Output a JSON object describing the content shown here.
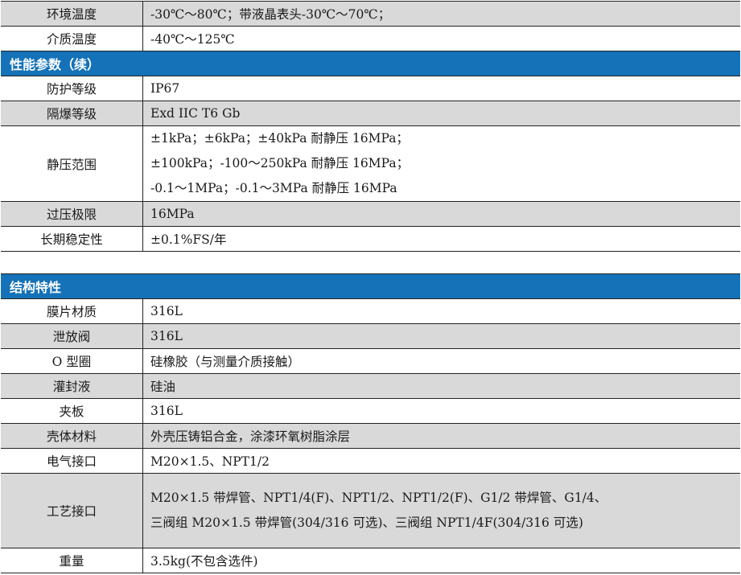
{
  "colors": {
    "header": "#1572b8",
    "shade": "#d9d9d9"
  },
  "table1": {
    "rows_before": [
      {
        "label": "环境温度",
        "value": [
          "-30℃～80℃；带液晶表头-30℃～70℃；"
        ],
        "shaded": true
      },
      {
        "label": "介质温度",
        "value": [
          "-40℃～125℃"
        ],
        "shaded": false
      }
    ],
    "section": "性能参数（续）",
    "rows": [
      {
        "label": "防护等级",
        "value": [
          "IP67"
        ],
        "shaded": false
      },
      {
        "label": "隔爆等级",
        "value": [
          "Exd IIC T6 Gb"
        ],
        "shaded": true
      },
      {
        "label": "静压范围",
        "value": [
          "±1kPa；±6kPa；±40kPa 耐静压 16MPa；",
          "±100kPa；-100～250kPa 耐静压 16MPa；",
          "-0.1～1MPa；-0.1～3MPa 耐静压 16MPa"
        ],
        "shaded": false
      },
      {
        "label": "过压极限",
        "value": [
          "16MPa"
        ],
        "shaded": true
      },
      {
        "label": "长期稳定性",
        "value": [
          "±0.1%FS/年"
        ],
        "shaded": false
      }
    ]
  },
  "table2": {
    "section": "结构特性",
    "rows": [
      {
        "label": "膜片材质",
        "value": [
          "316L"
        ],
        "shaded": false
      },
      {
        "label": "泄放阀",
        "value": [
          "316L"
        ],
        "shaded": true
      },
      {
        "label": "O 型圈",
        "value": [
          "硅橡胶（与测量介质接触）"
        ],
        "shaded": false
      },
      {
        "label": "灌封液",
        "value": [
          "硅油"
        ],
        "shaded": true
      },
      {
        "label": "夹板",
        "value": [
          "316L"
        ],
        "shaded": false
      },
      {
        "label": "壳体材料",
        "value": [
          "外壳压铸铝合金，涂漆环氧树脂涂层"
        ],
        "shaded": true
      },
      {
        "label": "电气接口",
        "value": [
          "M20×1.5、NPT1/2"
        ],
        "shaded": false
      },
      {
        "label": "工艺接口",
        "value": [
          "M20×1.5 带焊管、NPT1/4(F)、NPT1/2、NPT1/2(F)、G1/2 带焊管、G1/4、",
          "三阀组 M20×1.5 带焊管(304/316 可选)、三阀组 NPT1/4F(304/316 可选)"
        ],
        "shaded": true
      },
      {
        "label": "重量",
        "value": [
          "3.5kg(不包含选件)"
        ],
        "shaded": false
      }
    ]
  }
}
